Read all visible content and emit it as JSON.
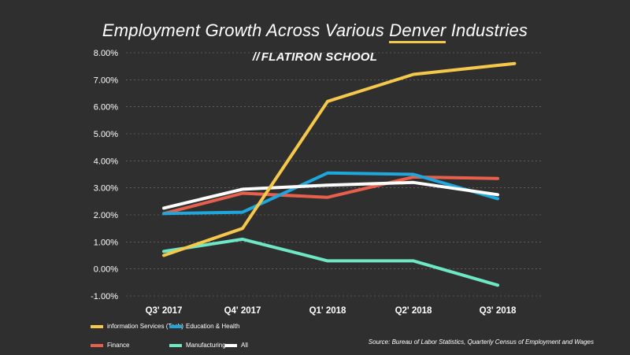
{
  "header": {
    "title_pre": "Employment Growth Across Various ",
    "title_highlight": "Denver",
    "title_post": " Industries",
    "logo_slashes": "//",
    "logo_text": "FLATIRON SCHOOL"
  },
  "source": "Source: Bureau of Labor Statistics, Quarterly Census of Employment and Wages",
  "chart_data": {
    "type": "line",
    "title": "Employment Growth Across Various Denver Industries",
    "categories": [
      "Q3' 2017",
      "Q4' 2017",
      "Q1' 2018",
      "Q2' 2018",
      "Q3' 2018"
    ],
    "x": [
      0,
      1,
      2,
      3,
      4
    ],
    "ylim": [
      -1.0,
      8.0
    ],
    "yticks": [
      8.0,
      7.0,
      6.0,
      5.0,
      4.0,
      3.0,
      2.0,
      1.0,
      0.0,
      -1.0
    ],
    "ytick_labels": [
      "8.00%",
      "7.00%",
      "6.00%",
      "5.00%",
      "4.00%",
      "3.00%",
      "2.00%",
      "1.00%",
      "0.00%",
      "-1.00%"
    ],
    "grid": "horizontal",
    "legend_position": "bottom-left",
    "series": [
      {
        "name": "Finance",
        "color": "#e8604c",
        "key": "finance",
        "values": [
          2.05,
          2.8,
          2.65,
          3.4,
          3.35
        ]
      },
      {
        "name": "Education & Health",
        "color": "#1ea7dc",
        "key": "education-health",
        "values": [
          2.05,
          2.1,
          3.55,
          3.5,
          2.6
        ]
      },
      {
        "name": "All",
        "color": "#ffffff",
        "key": "all",
        "values": [
          2.25,
          2.95,
          3.1,
          3.2,
          2.75
        ]
      },
      {
        "name": "Manufacturing",
        "color": "#6ee7c4",
        "key": "manufacturing",
        "values": [
          0.65,
          1.1,
          0.3,
          0.3,
          -0.6
        ]
      },
      {
        "name": "information Services (Tech)",
        "color": "#f5c84c",
        "key": "info-services",
        "values": [
          0.5,
          1.5,
          6.2,
          7.2,
          7.6
        ],
        "x_end": 4.2
      }
    ],
    "legend": [
      {
        "name": "information Services (Tech)",
        "color": "#f5c84c"
      },
      {
        "name": "Education & Health",
        "color": "#1ea7dc"
      },
      {
        "name": "Finance",
        "color": "#e8604c"
      },
      {
        "name": "Manufacturing",
        "color": "#6ee7c4"
      },
      {
        "name": "All",
        "color": "#ffffff"
      }
    ]
  }
}
